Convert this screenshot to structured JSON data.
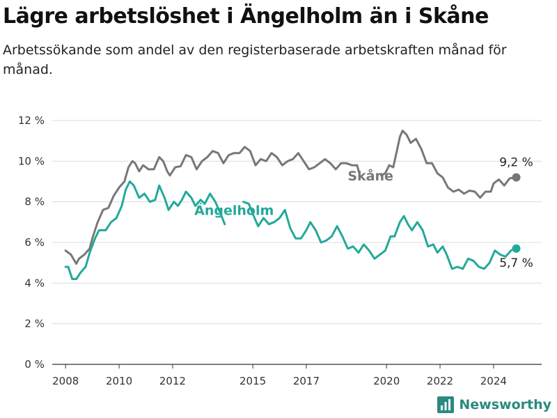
{
  "header": {
    "title": "Lägre arbetslöshet i Ängelholm än i Skåne",
    "subtitle": "Arbetssökande som andel av den registerbaserade arbetskraften månad för månad."
  },
  "brand": {
    "name": "Newsworthy",
    "icon": "bar-chart-logo-icon",
    "color": "#2a8a7f"
  },
  "chart_data": {
    "type": "line",
    "ylim": [
      0,
      12
    ],
    "yticks": [
      0,
      2,
      4,
      6,
      8,
      10,
      12
    ],
    "ytick_labels": [
      "0 %",
      "2 %",
      "4 %",
      "6 %",
      "8 %",
      "10 %",
      "12 %"
    ],
    "xlim": [
      2007.5,
      2025.8
    ],
    "xticks": [
      2008,
      2010,
      2012,
      2015,
      2017,
      2020,
      2022,
      2024
    ],
    "xtick_labels": [
      "2008",
      "2010",
      "2012",
      "2015",
      "2017",
      "2020",
      "2022",
      "2024"
    ],
    "grid": true,
    "series": [
      {
        "name": "Skåne",
        "color": "#777777",
        "end_label": "9,2 %",
        "points": [
          [
            2008.0,
            5.6
          ],
          [
            2008.2,
            5.4
          ],
          [
            2008.4,
            4.95
          ],
          [
            2008.5,
            5.2
          ],
          [
            2008.7,
            5.4
          ],
          [
            2008.9,
            5.7
          ],
          [
            2009.0,
            6.2
          ],
          [
            2009.2,
            7.0
          ],
          [
            2009.4,
            7.6
          ],
          [
            2009.6,
            7.7
          ],
          [
            2009.8,
            8.3
          ],
          [
            2010.0,
            8.7
          ],
          [
            2010.2,
            9.0
          ],
          [
            2010.35,
            9.7
          ],
          [
            2010.5,
            10.0
          ],
          [
            2010.6,
            9.9
          ],
          [
            2010.75,
            9.5
          ],
          [
            2010.9,
            9.8
          ],
          [
            2011.1,
            9.6
          ],
          [
            2011.3,
            9.6
          ],
          [
            2011.5,
            10.2
          ],
          [
            2011.65,
            10.0
          ],
          [
            2011.8,
            9.5
          ],
          [
            2011.9,
            9.3
          ],
          [
            2012.1,
            9.7
          ],
          [
            2012.3,
            9.75
          ],
          [
            2012.5,
            10.3
          ],
          [
            2012.7,
            10.2
          ],
          [
            2012.9,
            9.6
          ],
          [
            2013.1,
            10.0
          ],
          [
            2013.3,
            10.2
          ],
          [
            2013.5,
            10.5
          ],
          [
            2013.7,
            10.4
          ],
          [
            2013.9,
            9.9
          ],
          [
            2014.1,
            10.3
          ],
          [
            2014.3,
            10.4
          ],
          [
            2014.5,
            10.4
          ],
          [
            2014.7,
            10.7
          ],
          [
            2014.9,
            10.5
          ],
          [
            2015.1,
            9.8
          ],
          [
            2015.3,
            10.1
          ],
          [
            2015.5,
            10.0
          ],
          [
            2015.7,
            10.4
          ],
          [
            2015.9,
            10.2
          ],
          [
            2016.1,
            9.8
          ],
          [
            2016.3,
            10.0
          ],
          [
            2016.5,
            10.1
          ],
          [
            2016.7,
            10.4
          ],
          [
            2016.9,
            10.0
          ],
          [
            2017.1,
            9.6
          ],
          [
            2017.3,
            9.7
          ],
          [
            2017.5,
            9.9
          ],
          [
            2017.7,
            10.1
          ],
          [
            2017.9,
            9.9
          ],
          [
            2018.1,
            9.6
          ],
          [
            2018.3,
            9.9
          ],
          [
            2018.5,
            9.9
          ],
          [
            2018.7,
            9.8
          ],
          [
            2018.9,
            9.8
          ],
          [
            2019.0,
            9.3
          ]
        ],
        "points_2": [
          [
            2019.8,
            9.3
          ],
          [
            2019.95,
            9.4
          ],
          [
            2020.1,
            9.8
          ],
          [
            2020.25,
            9.7
          ],
          [
            2020.4,
            10.6
          ],
          [
            2020.5,
            11.2
          ],
          [
            2020.6,
            11.5
          ],
          [
            2020.75,
            11.3
          ],
          [
            2020.9,
            10.9
          ],
          [
            2021.1,
            11.1
          ],
          [
            2021.3,
            10.6
          ],
          [
            2021.5,
            9.9
          ],
          [
            2021.7,
            9.9
          ],
          [
            2021.9,
            9.4
          ],
          [
            2022.1,
            9.2
          ],
          [
            2022.3,
            8.7
          ],
          [
            2022.5,
            8.5
          ],
          [
            2022.7,
            8.6
          ],
          [
            2022.9,
            8.4
          ],
          [
            2023.1,
            8.55
          ],
          [
            2023.3,
            8.5
          ],
          [
            2023.5,
            8.2
          ],
          [
            2023.7,
            8.5
          ],
          [
            2023.9,
            8.5
          ],
          [
            2024.0,
            8.9
          ],
          [
            2024.2,
            9.1
          ],
          [
            2024.4,
            8.8
          ],
          [
            2024.6,
            9.15
          ],
          [
            2024.8,
            9.2
          ]
        ],
        "end_point": [
          2024.85,
          9.2
        ]
      },
      {
        "name": "Ängelholm",
        "color": "#22a99a",
        "end_label": "5,7 %",
        "points": [
          [
            2008.0,
            4.8
          ],
          [
            2008.1,
            4.8
          ],
          [
            2008.25,
            4.2
          ],
          [
            2008.4,
            4.2
          ],
          [
            2008.55,
            4.5
          ],
          [
            2008.75,
            4.8
          ],
          [
            2008.9,
            5.5
          ],
          [
            2009.1,
            6.2
          ],
          [
            2009.25,
            6.6
          ],
          [
            2009.5,
            6.6
          ],
          [
            2009.7,
            7.0
          ],
          [
            2009.9,
            7.2
          ],
          [
            2010.1,
            7.8
          ],
          [
            2010.25,
            8.6
          ],
          [
            2010.4,
            9.0
          ],
          [
            2010.55,
            8.8
          ],
          [
            2010.75,
            8.2
          ],
          [
            2010.95,
            8.4
          ],
          [
            2011.15,
            8.0
          ],
          [
            2011.35,
            8.1
          ],
          [
            2011.5,
            8.8
          ],
          [
            2011.7,
            8.2
          ],
          [
            2011.85,
            7.6
          ],
          [
            2012.05,
            8.0
          ],
          [
            2012.2,
            7.8
          ],
          [
            2012.35,
            8.1
          ],
          [
            2012.5,
            8.5
          ],
          [
            2012.7,
            8.2
          ],
          [
            2012.85,
            7.8
          ],
          [
            2013.05,
            8.1
          ],
          [
            2013.2,
            7.9
          ],
          [
            2013.4,
            8.4
          ],
          [
            2013.6,
            8.0
          ],
          [
            2013.8,
            7.4
          ],
          [
            2013.95,
            6.9
          ]
        ],
        "points_2": [
          [
            2014.65,
            8.0
          ],
          [
            2014.85,
            7.9
          ],
          [
            2015.0,
            7.4
          ],
          [
            2015.2,
            6.8
          ],
          [
            2015.4,
            7.2
          ],
          [
            2015.6,
            6.9
          ],
          [
            2015.8,
            7.0
          ],
          [
            2016.0,
            7.2
          ],
          [
            2016.2,
            7.6
          ],
          [
            2016.4,
            6.7
          ],
          [
            2016.6,
            6.2
          ],
          [
            2016.8,
            6.2
          ],
          [
            2017.0,
            6.6
          ],
          [
            2017.15,
            7.0
          ],
          [
            2017.35,
            6.6
          ],
          [
            2017.55,
            6.0
          ],
          [
            2017.75,
            6.1
          ],
          [
            2017.95,
            6.3
          ],
          [
            2018.15,
            6.8
          ],
          [
            2018.35,
            6.3
          ],
          [
            2018.55,
            5.7
          ],
          [
            2018.75,
            5.8
          ],
          [
            2018.95,
            5.5
          ],
          [
            2019.15,
            5.9
          ],
          [
            2019.35,
            5.6
          ],
          [
            2019.55,
            5.2
          ],
          [
            2019.75,
            5.4
          ],
          [
            2019.95,
            5.6
          ],
          [
            2020.15,
            6.3
          ],
          [
            2020.3,
            6.3
          ],
          [
            2020.5,
            7.0
          ],
          [
            2020.65,
            7.3
          ],
          [
            2020.8,
            6.9
          ],
          [
            2020.95,
            6.6
          ],
          [
            2021.15,
            7.0
          ],
          [
            2021.35,
            6.6
          ],
          [
            2021.55,
            5.8
          ],
          [
            2021.75,
            5.9
          ],
          [
            2021.9,
            5.5
          ],
          [
            2022.1,
            5.8
          ],
          [
            2022.25,
            5.4
          ],
          [
            2022.45,
            4.7
          ],
          [
            2022.65,
            4.8
          ],
          [
            2022.85,
            4.7
          ],
          [
            2023.05,
            5.2
          ],
          [
            2023.25,
            5.1
          ],
          [
            2023.45,
            4.8
          ],
          [
            2023.65,
            4.7
          ],
          [
            2023.85,
            5.0
          ],
          [
            2024.05,
            5.6
          ],
          [
            2024.25,
            5.4
          ],
          [
            2024.45,
            5.3
          ],
          [
            2024.65,
            5.6
          ],
          [
            2024.8,
            5.7
          ]
        ],
        "end_point": [
          2024.85,
          5.7
        ]
      }
    ]
  }
}
